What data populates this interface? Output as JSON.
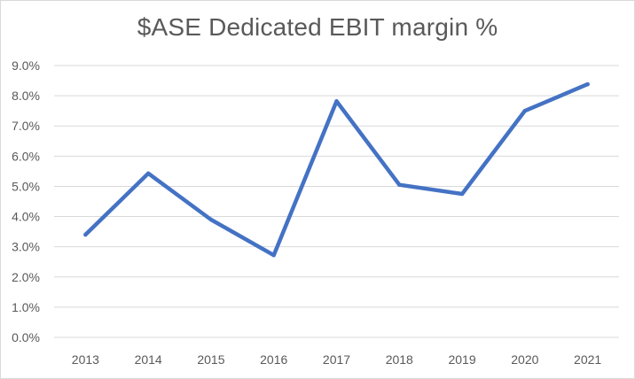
{
  "chart_data": {
    "type": "line",
    "title": "$ASE Dedicated EBIT margin %",
    "xlabel": "",
    "ylabel": "",
    "categories": [
      "2013",
      "2014",
      "2015",
      "2016",
      "2017",
      "2018",
      "2019",
      "2020",
      "2021"
    ],
    "series": [
      {
        "values": [
          3.4,
          5.43,
          3.9,
          2.72,
          7.82,
          5.05,
          4.75,
          7.5,
          8.38
        ]
      }
    ],
    "ylim": [
      0,
      9
    ],
    "yticks": [
      "0.0%",
      "1.0%",
      "2.0%",
      "3.0%",
      "4.0%",
      "5.0%",
      "6.0%",
      "7.0%",
      "8.0%",
      "9.0%"
    ],
    "grid": true,
    "legend": "none",
    "colors": {
      "line": "#4472c4",
      "grid": "#d9d9d9",
      "text": "#595959"
    }
  }
}
